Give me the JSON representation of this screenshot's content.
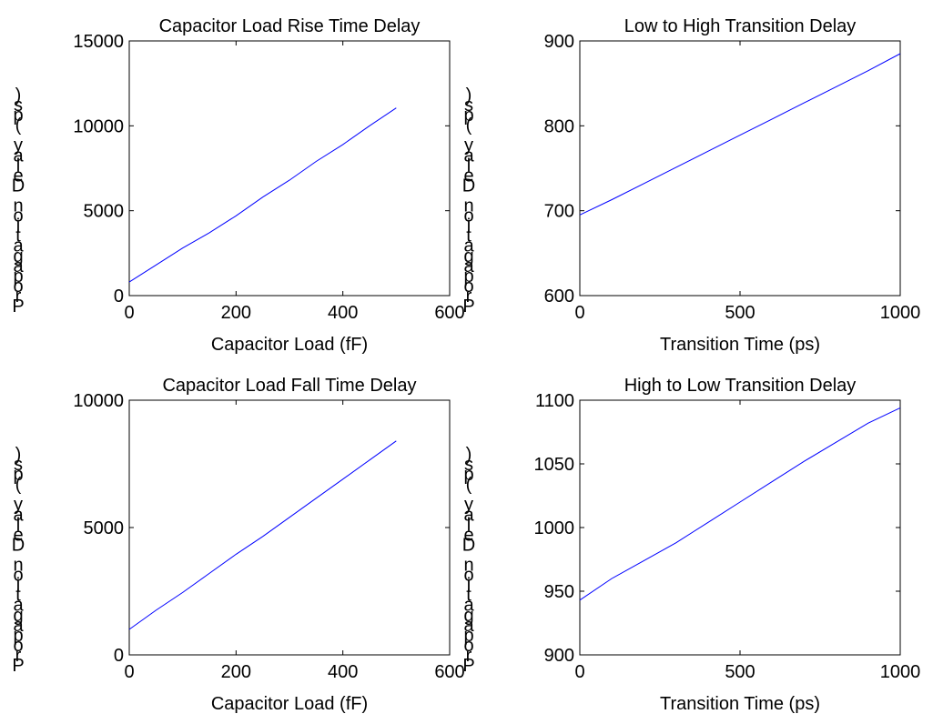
{
  "colors": {
    "series": "#0000ff",
    "axes": "#000000",
    "background": "#ffffff"
  },
  "chart_data": [
    {
      "type": "line",
      "title": "Capacitor Load Rise Time Delay",
      "xlabel": "Capacitor Load (fF)",
      "ylabel": "Propagation Delay (ps)",
      "xlim": [
        0,
        600
      ],
      "ylim": [
        0,
        15000
      ],
      "xticks": [
        "0",
        "200",
        "400",
        "600"
      ],
      "yticks": [
        "0",
        "5000",
        "10000",
        "15000"
      ],
      "grid": false,
      "series": [
        {
          "x": [
            0,
            50,
            100,
            150,
            200,
            250,
            300,
            350,
            400,
            450,
            500
          ],
          "y": [
            800,
            1800,
            2800,
            3700,
            4700,
            5800,
            6800,
            7900,
            8900,
            10000,
            11050
          ]
        }
      ]
    },
    {
      "type": "line",
      "title": "Low to High Transition Delay",
      "xlabel": "Transition Time (ps)",
      "ylabel": "Propagation Delay (ps)",
      "xlim": [
        0,
        1000
      ],
      "ylim": [
        600,
        900
      ],
      "xticks": [
        "0",
        "500",
        "1000"
      ],
      "yticks": [
        "600",
        "700",
        "800",
        "900"
      ],
      "grid": false,
      "series": [
        {
          "x": [
            0,
            100,
            200,
            300,
            400,
            500,
            600,
            700,
            800,
            900,
            1000
          ],
          "y": [
            695,
            713,
            732,
            751,
            770,
            789,
            808,
            827,
            846,
            865,
            885
          ]
        }
      ]
    },
    {
      "type": "line",
      "title": "Capacitor Load Fall Time Delay",
      "xlabel": "Capacitor Load (fF)",
      "ylabel": "Propagation Delay (ps)",
      "xlim": [
        0,
        600
      ],
      "ylim": [
        0,
        10000
      ],
      "xticks": [
        "0",
        "200",
        "400",
        "600"
      ],
      "yticks": [
        "0",
        "5000",
        "10000"
      ],
      "grid": false,
      "series": [
        {
          "x": [
            0,
            50,
            100,
            150,
            200,
            250,
            300,
            350,
            400,
            450,
            500
          ],
          "y": [
            1000,
            1750,
            2450,
            3200,
            3950,
            4650,
            5400,
            6150,
            6900,
            7650,
            8400
          ]
        }
      ]
    },
    {
      "type": "line",
      "title": "High to Low Transition Delay",
      "xlabel": "Transition Time (ps)",
      "ylabel": "Propagation Delay (ps)",
      "xlim": [
        0,
        1000
      ],
      "ylim": [
        900,
        1100
      ],
      "xticks": [
        "0",
        "500",
        "1000"
      ],
      "yticks": [
        "900",
        "950",
        "1000",
        "1050",
        "1100"
      ],
      "grid": false,
      "series": [
        {
          "x": [
            0,
            100,
            200,
            300,
            400,
            500,
            600,
            700,
            800,
            900,
            1000
          ],
          "y": [
            943,
            960,
            974,
            988,
            1004,
            1020,
            1036,
            1052,
            1067,
            1082,
            1094
          ]
        }
      ]
    }
  ]
}
